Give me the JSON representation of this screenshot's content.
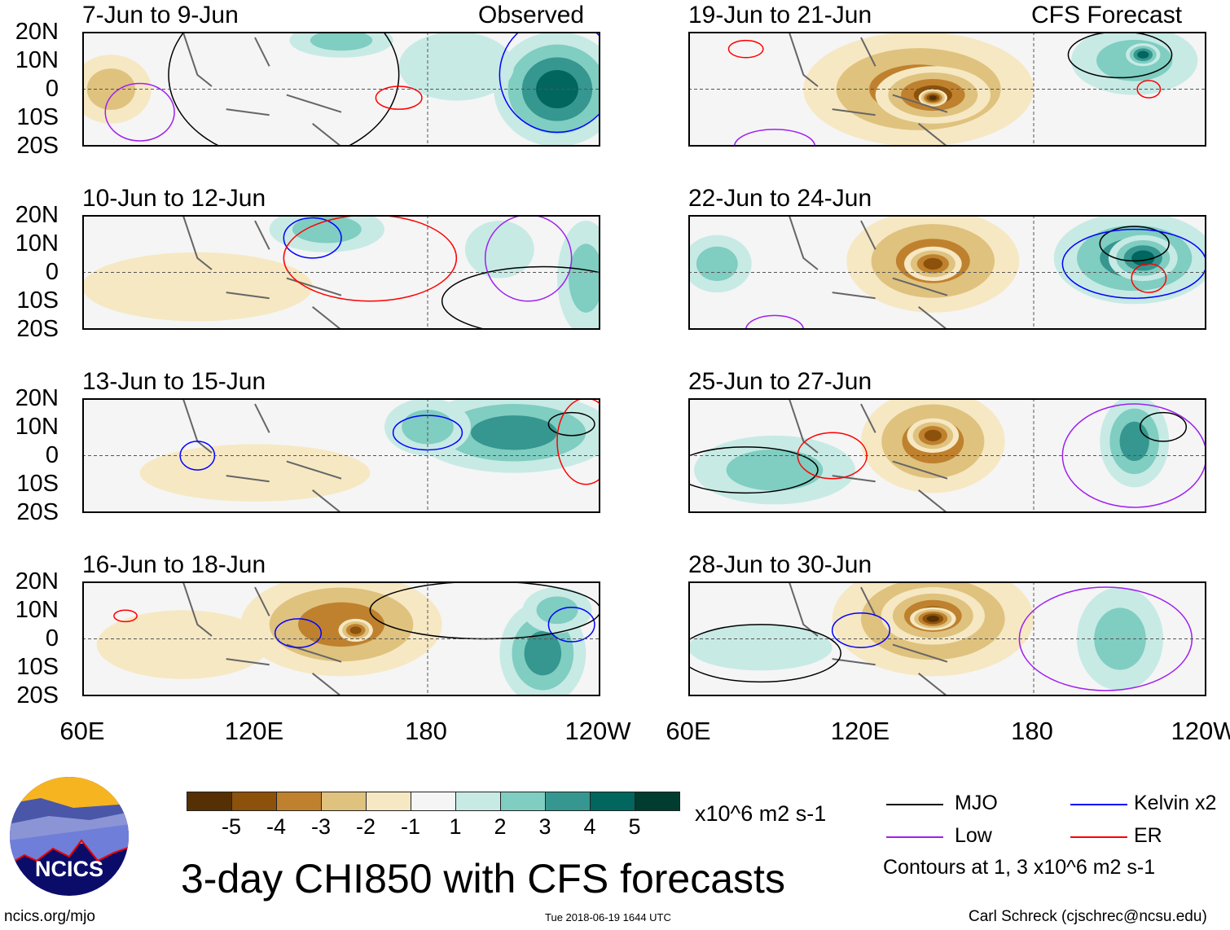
{
  "labels": {
    "observed": "Observed",
    "forecast": "CFS Forecast"
  },
  "lat_ticks": [
    "20N",
    "10N",
    "0",
    "10S",
    "20S"
  ],
  "lon_ticks": [
    "60E",
    "120E",
    "180",
    "120W"
  ],
  "panels": [
    {
      "title": "7-Jun to 9-Jun",
      "anomalies": [
        {
          "lon": 70,
          "lat": 0,
          "rx": 14,
          "ry": 12,
          "v": -2
        },
        {
          "lon": 225,
          "lat": 0,
          "rx": 22,
          "ry": 20,
          "v": 4
        },
        {
          "lon": 150,
          "lat": 17,
          "rx": 18,
          "ry": 6,
          "v": 2
        },
        {
          "lon": 190,
          "lat": 8,
          "rx": 20,
          "ry": 12,
          "v": 1
        }
      ],
      "contours": [
        {
          "t": "mjo",
          "lon": 130,
          "lat": 5,
          "rx": 40,
          "ry": 30
        },
        {
          "t": "kelvin",
          "lon": 225,
          "lat": 5,
          "rx": 20,
          "ry": 20
        },
        {
          "t": "er",
          "lon": 170,
          "lat": -3,
          "rx": 8,
          "ry": 4
        },
        {
          "t": "low",
          "lon": 80,
          "lat": -8,
          "rx": 12,
          "ry": 10
        }
      ]
    },
    {
      "title": "10-Jun to 12-Jun",
      "anomalies": [
        {
          "lon": 100,
          "lat": -5,
          "rx": 40,
          "ry": 12,
          "v": -1
        },
        {
          "lon": 145,
          "lat": 15,
          "rx": 20,
          "ry": 8,
          "v": 2
        },
        {
          "lon": 235,
          "lat": -2,
          "rx": 10,
          "ry": 20,
          "v": 2
        },
        {
          "lon": 205,
          "lat": 8,
          "rx": 12,
          "ry": 10,
          "v": 1
        }
      ],
      "contours": [
        {
          "t": "kelvin",
          "lon": 140,
          "lat": 12,
          "rx": 10,
          "ry": 7
        },
        {
          "t": "er",
          "lon": 160,
          "lat": 5,
          "rx": 30,
          "ry": 15
        },
        {
          "t": "low",
          "lon": 215,
          "lat": 5,
          "rx": 15,
          "ry": 15
        },
        {
          "t": "mjo",
          "lon": 220,
          "lat": -10,
          "rx": 35,
          "ry": 12
        }
      ]
    },
    {
      "title": "13-Jun to 15-Jun",
      "anomalies": [
        {
          "lon": 210,
          "lat": 8,
          "rx": 35,
          "ry": 14,
          "v": 3
        },
        {
          "lon": 120,
          "lat": -6,
          "rx": 40,
          "ry": 10,
          "v": -1
        },
        {
          "lon": 180,
          "lat": 10,
          "rx": 15,
          "ry": 10,
          "v": 2
        }
      ],
      "contours": [
        {
          "t": "kelvin",
          "lon": 180,
          "lat": 8,
          "rx": 12,
          "ry": 6
        },
        {
          "t": "mjo",
          "lon": 230,
          "lat": 11,
          "rx": 8,
          "ry": 4
        },
        {
          "t": "er",
          "lon": 235,
          "lat": 5,
          "rx": 10,
          "ry": 15
        },
        {
          "t": "kelvin",
          "lon": 100,
          "lat": 0,
          "rx": 6,
          "ry": 5
        }
      ]
    },
    {
      "title": "16-Jun to 18-Jun",
      "anomalies": [
        {
          "lon": 150,
          "lat": 5,
          "rx": 35,
          "ry": 18,
          "v": -3
        },
        {
          "lon": 155,
          "lat": 3,
          "rx": 6,
          "ry": 4,
          "v": -4
        },
        {
          "lon": 220,
          "lat": -5,
          "rx": 15,
          "ry": 18,
          "v": 3
        },
        {
          "lon": 225,
          "lat": 10,
          "rx": 12,
          "ry": 8,
          "v": 2
        },
        {
          "lon": 95,
          "lat": -2,
          "rx": 30,
          "ry": 12,
          "v": -1
        }
      ],
      "contours": [
        {
          "t": "kelvin",
          "lon": 135,
          "lat": 2,
          "rx": 8,
          "ry": 5
        },
        {
          "t": "kelvin",
          "lon": 230,
          "lat": 5,
          "rx": 8,
          "ry": 6
        },
        {
          "t": "er",
          "lon": 75,
          "lat": 8,
          "rx": 4,
          "ry": 2
        },
        {
          "t": "mjo",
          "lon": 200,
          "lat": 10,
          "rx": 40,
          "ry": 10
        }
      ]
    },
    {
      "title": "19-Jun to 21-Jun",
      "anomalies": [
        {
          "lon": 140,
          "lat": 0,
          "rx": 40,
          "ry": 20,
          "v": -3
        },
        {
          "lon": 145,
          "lat": -2,
          "rx": 20,
          "ry": 10,
          "v": -4
        },
        {
          "lon": 145,
          "lat": -3,
          "rx": 5,
          "ry": 3,
          "v": -5
        },
        {
          "lon": 215,
          "lat": 10,
          "rx": 22,
          "ry": 12,
          "v": 2
        },
        {
          "lon": 218,
          "lat": 12,
          "rx": 6,
          "ry": 4,
          "v": 4
        }
      ],
      "contours": [
        {
          "t": "mjo",
          "lon": 210,
          "lat": 12,
          "rx": 18,
          "ry": 8
        },
        {
          "t": "er",
          "lon": 80,
          "lat": 14,
          "rx": 6,
          "ry": 3
        },
        {
          "t": "er",
          "lon": 220,
          "lat": 0,
          "rx": 4,
          "ry": 3
        },
        {
          "t": "low",
          "lon": 90,
          "lat": -20,
          "rx": 14,
          "ry": 6
        }
      ]
    },
    {
      "title": "22-Jun to 24-Jun",
      "anomalies": [
        {
          "lon": 145,
          "lat": 4,
          "rx": 30,
          "ry": 18,
          "v": -3
        },
        {
          "lon": 145,
          "lat": 3,
          "rx": 10,
          "ry": 6,
          "v": -4
        },
        {
          "lon": 215,
          "lat": 5,
          "rx": 28,
          "ry": 16,
          "v": 3
        },
        {
          "lon": 218,
          "lat": 5,
          "rx": 12,
          "ry": 8,
          "v": 4
        },
        {
          "lon": 70,
          "lat": 3,
          "rx": 12,
          "ry": 10,
          "v": 2
        }
      ],
      "contours": [
        {
          "t": "mjo",
          "lon": 215,
          "lat": 10,
          "rx": 12,
          "ry": 6
        },
        {
          "t": "er",
          "lon": 220,
          "lat": -2,
          "rx": 6,
          "ry": 5
        },
        {
          "t": "kelvin",
          "lon": 215,
          "lat": 3,
          "rx": 25,
          "ry": 12
        },
        {
          "t": "low",
          "lon": 90,
          "lat": -20,
          "rx": 10,
          "ry": 5
        }
      ]
    },
    {
      "title": "25-Jun to 27-Jun",
      "anomalies": [
        {
          "lon": 145,
          "lat": 5,
          "rx": 25,
          "ry": 18,
          "v": -3
        },
        {
          "lon": 145,
          "lat": 7,
          "rx": 9,
          "ry": 6,
          "v": -4
        },
        {
          "lon": 215,
          "lat": 5,
          "rx": 12,
          "ry": 16,
          "v": 3
        },
        {
          "lon": 90,
          "lat": -5,
          "rx": 28,
          "ry": 12,
          "v": 2
        }
      ],
      "contours": [
        {
          "t": "mjo",
          "lon": 225,
          "lat": 10,
          "rx": 8,
          "ry": 5
        },
        {
          "t": "mjo",
          "lon": 80,
          "lat": -5,
          "rx": 25,
          "ry": 8
        },
        {
          "t": "er",
          "lon": 110,
          "lat": 0,
          "rx": 12,
          "ry": 8
        },
        {
          "t": "low",
          "lon": 215,
          "lat": 0,
          "rx": 25,
          "ry": 18
        }
      ]
    },
    {
      "title": "28-Jun to 30-Jun",
      "anomalies": [
        {
          "lon": 145,
          "lat": 7,
          "rx": 35,
          "ry": 20,
          "v": -3
        },
        {
          "lon": 145,
          "lat": 8,
          "rx": 18,
          "ry": 10,
          "v": -4
        },
        {
          "lon": 145,
          "lat": 7,
          "rx": 8,
          "ry": 4,
          "v": -5
        },
        {
          "lon": 210,
          "lat": 0,
          "rx": 15,
          "ry": 18,
          "v": 2
        },
        {
          "lon": 85,
          "lat": -3,
          "rx": 25,
          "ry": 8,
          "v": 1
        }
      ],
      "contours": [
        {
          "t": "mjo",
          "lon": 85,
          "lat": -5,
          "rx": 28,
          "ry": 10
        },
        {
          "t": "kelvin",
          "lon": 120,
          "lat": 3,
          "rx": 10,
          "ry": 6
        },
        {
          "t": "low",
          "lon": 205,
          "lat": 0,
          "rx": 30,
          "ry": 18
        }
      ]
    }
  ],
  "colorbar": {
    "labels": [
      "-5",
      "-4",
      "-3",
      "-2",
      "-1",
      "1",
      "2",
      "3",
      "4",
      "5"
    ],
    "colors": [
      "#553005",
      "#8c510b",
      "#bf812e",
      "#dfc27e",
      "#f6e8c3",
      "#f5f5f5",
      "#c7eae5",
      "#80cdc1",
      "#35978f",
      "#01665e",
      "#003c30"
    ],
    "units": "x10^6 m2 s-1"
  },
  "title": "3-day CHI850 with CFS forecasts",
  "legend": {
    "mjo": "MJO",
    "kelvin": "Kelvin x2",
    "low": "Low",
    "er": "ER",
    "note": "Contours at 1, 3 x10^6 m2 s-1",
    "colors": {
      "mjo": "#000000",
      "kelvin": "#0000ff",
      "low": "#a020f0",
      "er": "#ff0000"
    }
  },
  "footer": {
    "site": "ncics.org/mjo",
    "timestamp": "Tue 2018-06-19 1644 UTC",
    "credit": "Carl Schreck (cjschrec@ncsu.edu)",
    "logo": "NCICS"
  }
}
